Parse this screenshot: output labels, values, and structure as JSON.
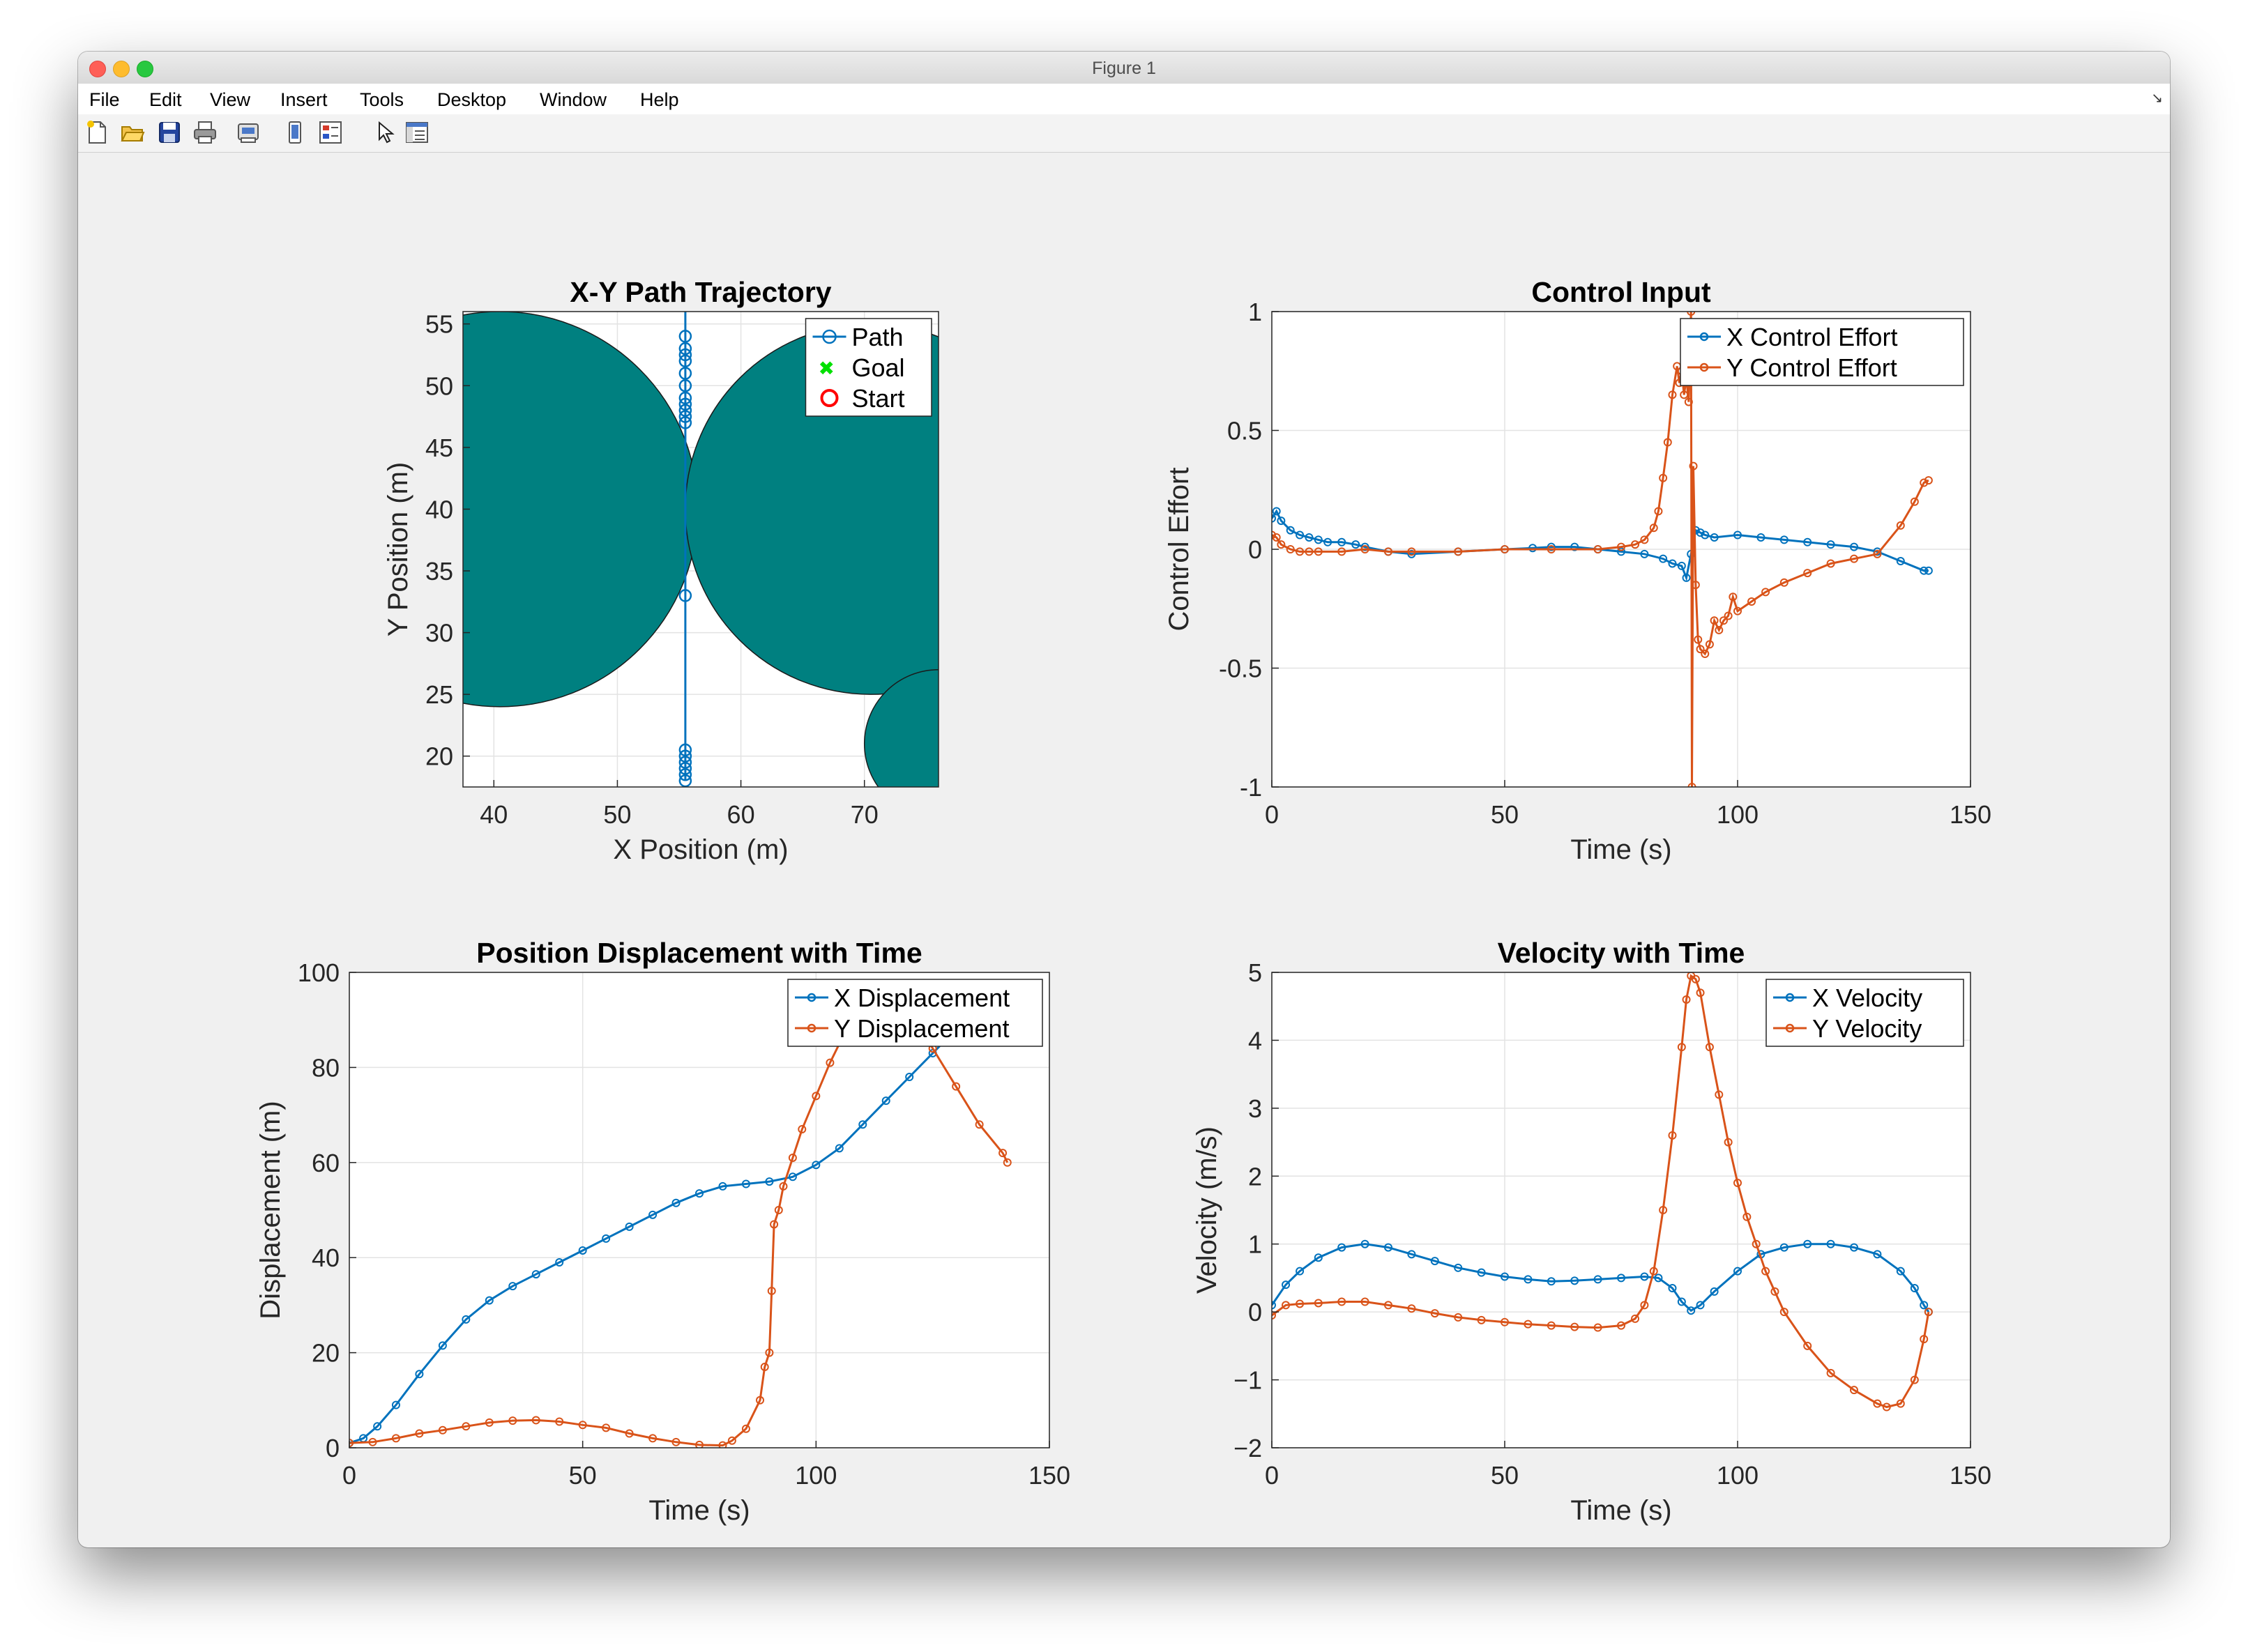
{
  "window": {
    "title": "Figure 1"
  },
  "menubar": {
    "items": [
      "File",
      "Edit",
      "View",
      "Insert",
      "Tools",
      "Desktop",
      "Window",
      "Help"
    ]
  },
  "toolbar": {
    "icons": [
      "new-figure-icon",
      "open-file-icon",
      "save-icon",
      "print-icon",
      "print-preview-icon",
      "link-plot-icon",
      "insert-legend-icon",
      "select-pointer-icon",
      "property-inspector-icon"
    ]
  },
  "colors": {
    "blue": "#0072bd",
    "orange": "#d95319",
    "teal": "#008080",
    "goal": "#00e000",
    "start": "#ff0000",
    "grid": "#e3e3e3"
  },
  "chart_data": [
    {
      "type": "line",
      "title": "X-Y Path Trajectory",
      "xlabel": "X Position (m)",
      "ylabel": "Y Position (m)",
      "xlim": [
        37.5,
        76
      ],
      "ylim": [
        17.5,
        56
      ],
      "xticks": [
        40,
        50,
        60,
        70
      ],
      "yticks": [
        20,
        25,
        30,
        35,
        40,
        45,
        50,
        55
      ],
      "grid": true,
      "legend": {
        "position": "top-right",
        "entries": [
          "Path",
          "Goal",
          "Start"
        ]
      },
      "obstacles": [
        {
          "cx": 40.5,
          "cy": 40.0,
          "r": 16.0
        },
        {
          "cx": 70.5,
          "cy": 40.0,
          "r": 15.0
        },
        {
          "cx": 76.0,
          "cy": 21.0,
          "r": 6.0
        }
      ],
      "series": [
        {
          "name": "Path",
          "x": [
            55.5,
            55.5
          ],
          "y": [
            18,
            56
          ],
          "markers_y": [
            18.0,
            18.5,
            19.0,
            19.5,
            20.0,
            20.5,
            33.0,
            47.0,
            47.5,
            48.0,
            48.5,
            49.0,
            50.0,
            51.0,
            52.0,
            52.5,
            53.0,
            54.0
          ]
        }
      ]
    },
    {
      "type": "line",
      "title": "Control Input",
      "xlabel": "Time (s)",
      "ylabel": "Control Effort",
      "xlim": [
        0,
        150
      ],
      "ylim": [
        -1,
        1
      ],
      "xticks": [
        0,
        50,
        100,
        150
      ],
      "yticks": [
        -1,
        -0.5,
        0,
        0.5,
        1
      ],
      "grid": true,
      "legend": {
        "position": "top-right",
        "entries": [
          "X Control Effort",
          "Y Control Effort"
        ]
      },
      "series": [
        {
          "name": "X Control Effort",
          "x": [
            0,
            1,
            2,
            4,
            6,
            8,
            10,
            12,
            15,
            18,
            20,
            25,
            30,
            40,
            50,
            56,
            60,
            65,
            70,
            75,
            80,
            84,
            86,
            88,
            89,
            90,
            91,
            92,
            93,
            95,
            100,
            105,
            110,
            115,
            120,
            125,
            130,
            135,
            140,
            141
          ],
          "y": [
            0.13,
            0.16,
            0.12,
            0.08,
            0.06,
            0.05,
            0.04,
            0.03,
            0.03,
            0.02,
            0.01,
            -0.01,
            -0.02,
            -0.01,
            0.0,
            0.005,
            0.01,
            0.01,
            0.0,
            -0.01,
            -0.02,
            -0.04,
            -0.06,
            -0.07,
            -0.12,
            -0.02,
            0.08,
            0.07,
            0.06,
            0.05,
            0.06,
            0.05,
            0.04,
            0.03,
            0.02,
            0.01,
            -0.01,
            -0.05,
            -0.09,
            -0.09
          ]
        },
        {
          "name": "Y Control Effort",
          "x": [
            0,
            1,
            2,
            4,
            6,
            8,
            10,
            15,
            20,
            25,
            30,
            40,
            50,
            60,
            70,
            75,
            78,
            80,
            82,
            83,
            84,
            85,
            86,
            87,
            87.5,
            88,
            88.5,
            89,
            89.5,
            90,
            90.2,
            90.5,
            91,
            91.5,
            92,
            93,
            94,
            95,
            96,
            97,
            98,
            99,
            100,
            103,
            106,
            110,
            115,
            120,
            125,
            130,
            135,
            138,
            140,
            141
          ],
          "y": [
            0.06,
            0.05,
            0.02,
            0.0,
            -0.01,
            -0.01,
            -0.01,
            -0.01,
            0.0,
            -0.01,
            -0.01,
            -0.01,
            0.0,
            0.0,
            0.0,
            0.01,
            0.02,
            0.04,
            0.09,
            0.16,
            0.3,
            0.45,
            0.65,
            0.77,
            0.7,
            0.75,
            0.65,
            0.72,
            0.62,
            1.0,
            -1.0,
            0.35,
            -0.15,
            -0.38,
            -0.42,
            -0.44,
            -0.4,
            -0.3,
            -0.34,
            -0.3,
            -0.28,
            -0.2,
            -0.26,
            -0.22,
            -0.18,
            -0.14,
            -0.1,
            -0.06,
            -0.04,
            -0.02,
            0.1,
            0.2,
            0.28,
            0.29
          ]
        }
      ]
    },
    {
      "type": "line",
      "title": "Position Displacement with Time",
      "xlabel": "Time (s)",
      "ylabel": "Displacement (m)",
      "xlim": [
        0,
        150
      ],
      "ylim": [
        0,
        100
      ],
      "xticks": [
        0,
        50,
        100,
        150
      ],
      "yticks": [
        0,
        20,
        40,
        60,
        80,
        100
      ],
      "grid": true,
      "legend": {
        "position": "top-right",
        "entries": [
          "X Displacement",
          "Y Displacement"
        ]
      },
      "series": [
        {
          "name": "X Displacement",
          "x": [
            0,
            3,
            6,
            10,
            15,
            20,
            25,
            30,
            35,
            40,
            45,
            50,
            55,
            60,
            65,
            70,
            75,
            80,
            85,
            90,
            95,
            100,
            105,
            110,
            115,
            120,
            125,
            128
          ],
          "y": [
            1,
            2,
            4.5,
            9,
            15.5,
            21.5,
            27,
            31,
            34,
            36.5,
            39,
            41.5,
            44,
            46.5,
            49,
            51.5,
            53.5,
            55,
            55.5,
            56,
            57,
            59.5,
            63,
            68,
            73,
            78,
            83,
            86
          ]
        },
        {
          "name": "Y Displacement",
          "x": [
            0,
            5,
            10,
            15,
            20,
            25,
            30,
            35,
            40,
            45,
            50,
            55,
            60,
            65,
            70,
            75,
            80,
            82,
            85,
            88,
            89,
            90,
            90.5,
            91,
            92,
            93,
            95,
            97,
            100,
            103,
            106,
            110,
            115,
            120,
            125,
            130,
            135,
            140,
            141
          ],
          "y": [
            1,
            1.2,
            2,
            3,
            3.7,
            4.5,
            5.3,
            5.7,
            5.8,
            5.5,
            4.8,
            4.2,
            3,
            2,
            1.2,
            0.6,
            0.5,
            1.5,
            4,
            10,
            17,
            20,
            33,
            47,
            50,
            55,
            61,
            67,
            74,
            81,
            87,
            92,
            95,
            92,
            84,
            76,
            68,
            62,
            60
          ]
        }
      ]
    },
    {
      "type": "line",
      "title": "Velocity with Time",
      "xlabel": "Time (s)",
      "ylabel": "Velocity (m/s)",
      "xlim": [
        0,
        150
      ],
      "ylim": [
        -2,
        5
      ],
      "xticks": [
        0,
        50,
        100,
        150
      ],
      "yticks": [
        -2,
        -1,
        0,
        1,
        2,
        3,
        4,
        5
      ],
      "grid": true,
      "legend": {
        "position": "top-right",
        "entries": [
          "X Velocity",
          "Y Velocity"
        ]
      },
      "series": [
        {
          "name": "X Velocity",
          "x": [
            0,
            3,
            6,
            10,
            15,
            20,
            25,
            30,
            35,
            40,
            45,
            50,
            55,
            60,
            65,
            70,
            75,
            80,
            83,
            86,
            88,
            90,
            92,
            95,
            100,
            105,
            110,
            115,
            120,
            125,
            130,
            135,
            138,
            140,
            141
          ],
          "y": [
            0.1,
            0.4,
            0.6,
            0.8,
            0.95,
            1.0,
            0.95,
            0.85,
            0.75,
            0.65,
            0.58,
            0.52,
            0.48,
            0.45,
            0.46,
            0.48,
            0.5,
            0.52,
            0.5,
            0.35,
            0.15,
            0.02,
            0.1,
            0.3,
            0.6,
            0.85,
            0.95,
            1.0,
            1.0,
            0.95,
            0.85,
            0.6,
            0.35,
            0.1,
            0.0
          ]
        },
        {
          "name": "Y Velocity",
          "x": [
            0,
            3,
            6,
            10,
            15,
            20,
            25,
            30,
            35,
            40,
            45,
            50,
            55,
            60,
            65,
            70,
            75,
            78,
            80,
            82,
            84,
            86,
            88,
            89,
            90,
            91,
            92,
            94,
            96,
            98,
            100,
            102,
            104,
            106,
            108,
            110,
            115,
            120,
            125,
            130,
            132,
            135,
            138,
            140,
            141
          ],
          "y": [
            -0.05,
            0.1,
            0.12,
            0.13,
            0.15,
            0.15,
            0.1,
            0.05,
            -0.02,
            -0.08,
            -0.12,
            -0.15,
            -0.18,
            -0.2,
            -0.22,
            -0.23,
            -0.2,
            -0.1,
            0.1,
            0.6,
            1.5,
            2.6,
            3.9,
            4.6,
            4.95,
            4.9,
            4.7,
            3.9,
            3.2,
            2.5,
            1.9,
            1.4,
            1.0,
            0.6,
            0.3,
            0.0,
            -0.5,
            -0.9,
            -1.15,
            -1.35,
            -1.4,
            -1.35,
            -1.0,
            -0.4,
            0.0
          ]
        }
      ]
    }
  ]
}
